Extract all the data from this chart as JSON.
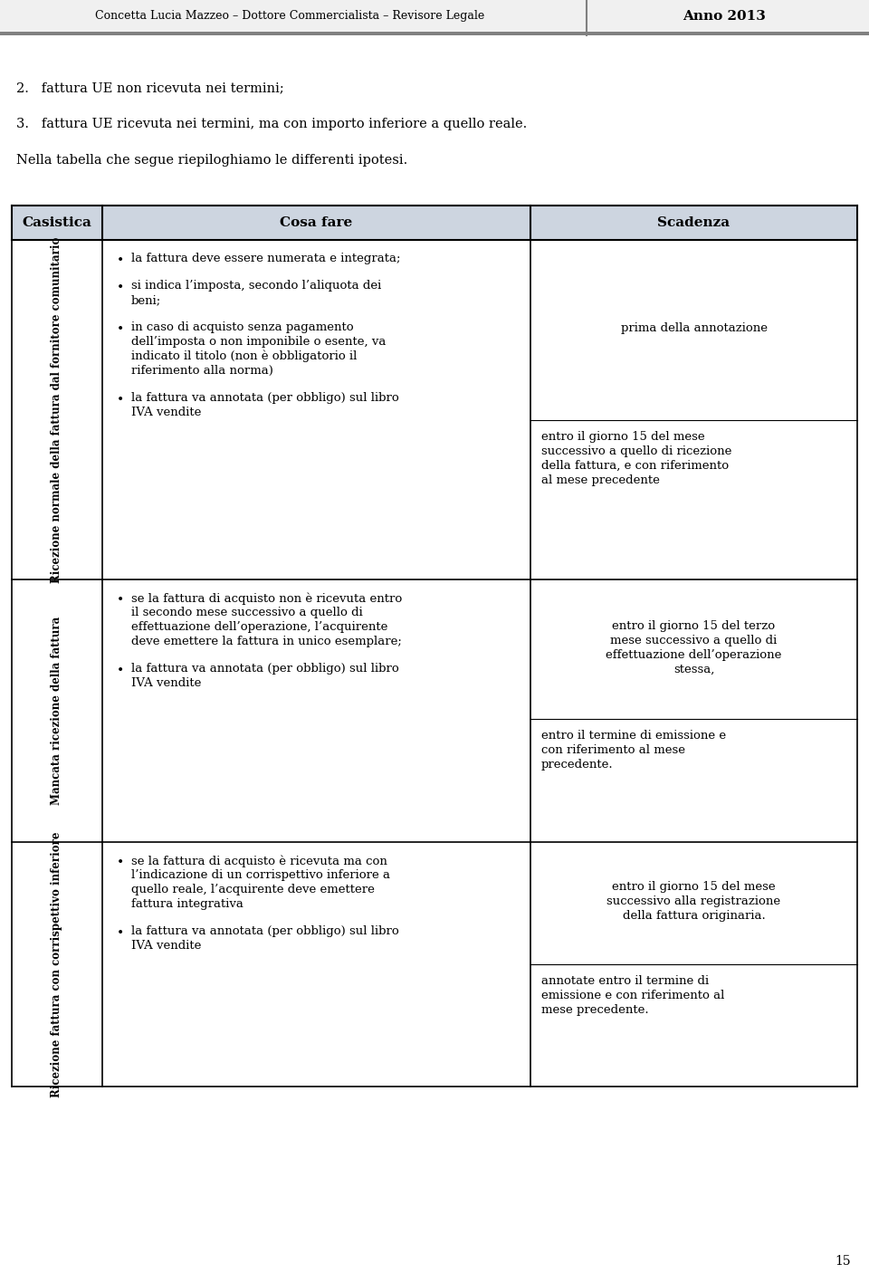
{
  "header_left": "Concetta Lucia Mazzeo – Dottore Commercialista – Revisore Legale",
  "header_right": "Anno 2013",
  "bg_color": "#ffffff",
  "page_number": "15",
  "intro_lines": [
    "2.   fattura UE non ricevuta nei termini;",
    "3.   fattura UE ricevuta nei termini, ma con importo inferiore a quello reale.",
    "Nella tabella che segue riepiloghiamo le differenti ipotesi."
  ],
  "table_header_bg": "#cdd5e0",
  "col_headers": [
    "Casistica",
    "Cosa fare",
    "Scadenza"
  ],
  "rows": [
    {
      "casistica": "Ricezione normale della fattura dal fornitore comunitario",
      "cosa_fare_bullets": [
        "la fattura deve essere numerata e integrata;",
        "si indica l’imposta, secondo l’aliquota dei beni;",
        "in caso di acquisto senza pagamento dell’imposta o non imponibile o esente, va indicato il titolo (non è obbligatorio il riferimento alla norma)",
        "la fattura va annotata (per obbligo) sul libro IVA vendite"
      ],
      "scadenza_parts": [
        "prima della annotazione",
        "entro il giorno 15 del mese successivo a quello di ricezione della fattura, e con riferimento al mese precedente"
      ],
      "sc_split": 0.53
    },
    {
      "casistica": "Mancata ricezione della fattura",
      "cosa_fare_bullets": [
        "se la fattura di acquisto non è ricevuta entro il secondo mese successivo a quello di effettuazione dell’operazione, l’acquirente deve emettere la fattura in unico esemplare;",
        "la fattura va annotata (per obbligo) sul libro IVA vendite"
      ],
      "scadenza_parts": [
        "entro il giorno 15 del terzo mese successivo a quello di effettuazione dell’operazione stessa,",
        "entro il termine di emissione e con riferimento al mese precedente."
      ],
      "sc_split": 0.53
    },
    {
      "casistica": "Ricezione fattura con corrispettivo inferiore",
      "cosa_fare_bullets": [
        "se la fattura di acquisto è ricevuta ma con l’indicazione di un corrispettivo inferiore a quello reale, l’acquirente deve emettere fattura integrativa",
        "la fattura va annotata (per obbligo) sul libro IVA vendite"
      ],
      "scadenza_parts": [
        "entro il giorno 15 del mese successivo alla registrazione della fattura originaria.",
        "annotate entro il termine di emissione e con riferimento al mese precedente."
      ],
      "sc_split": 0.5
    }
  ]
}
